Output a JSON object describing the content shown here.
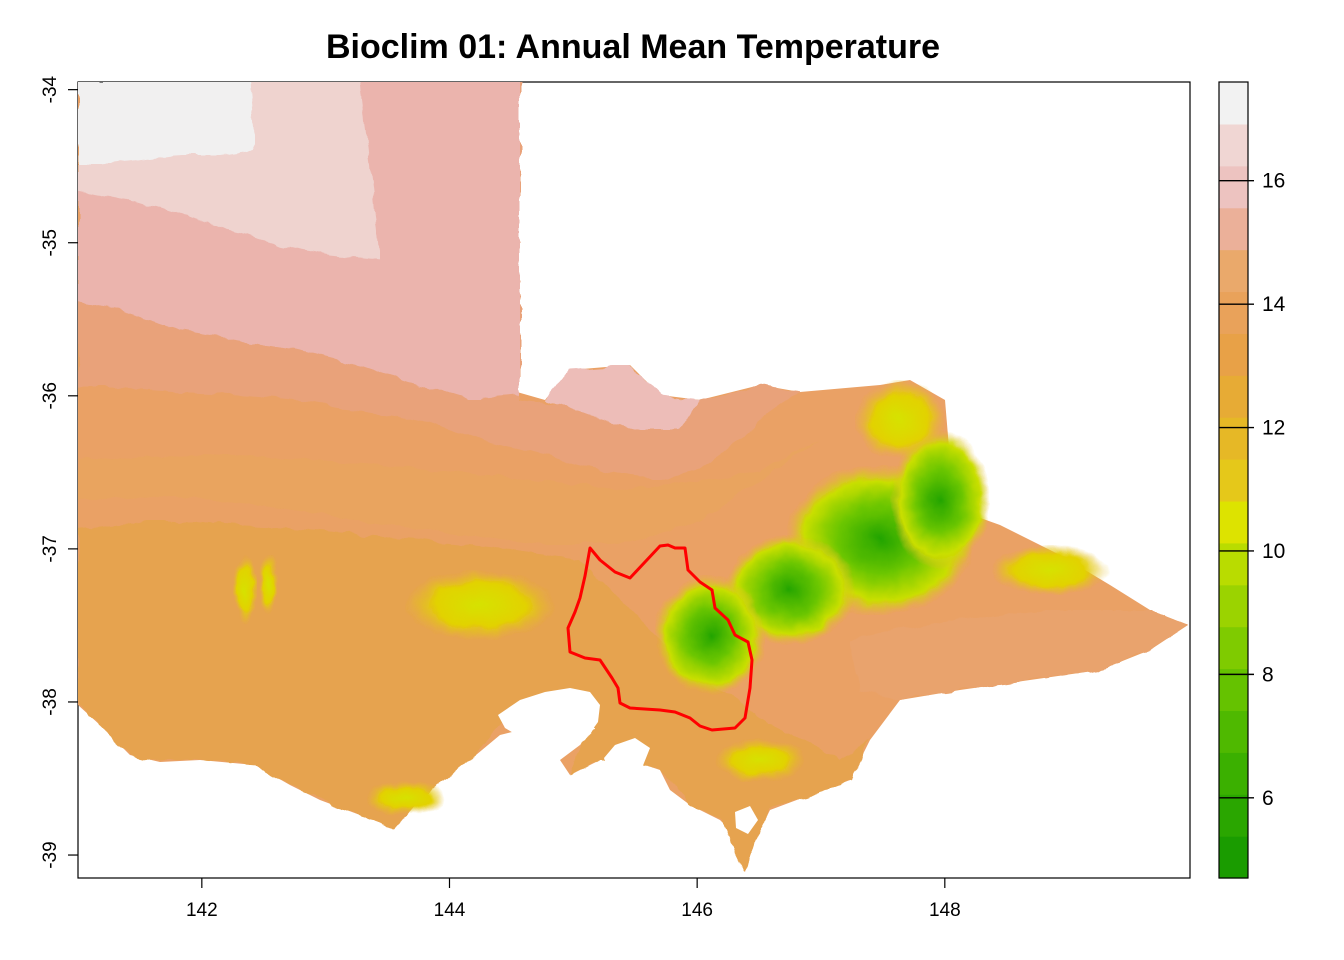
{
  "title": "Bioclim 01: Annual Mean Temperature",
  "map": {
    "x_ticks": [
      "142",
      "144",
      "146",
      "148"
    ],
    "y_ticks": [
      "-34",
      "-35",
      "-36",
      "-37",
      "-38",
      "-39"
    ],
    "xlim": [
      141.0,
      149.98
    ],
    "ylim": [
      -39.15,
      -33.95
    ],
    "boundary_color": "#ff0000"
  },
  "legend": {
    "ticks": [
      "6",
      "8",
      "10",
      "12",
      "14",
      "16"
    ],
    "range": [
      4.7,
      17.6
    ],
    "palette": [
      "#1a9c00",
      "#2aa600",
      "#3bb000",
      "#4fb900",
      "#65c200",
      "#7fcb00",
      "#9bd300",
      "#b9dc00",
      "#dde300",
      "#e5c81a",
      "#e6b826",
      "#e7ab35",
      "#e8a147",
      "#e9a25a",
      "#eaa96b",
      "#ebb099",
      "#edc3c0",
      "#f0d6d3",
      "#f2f2f2"
    ]
  }
}
